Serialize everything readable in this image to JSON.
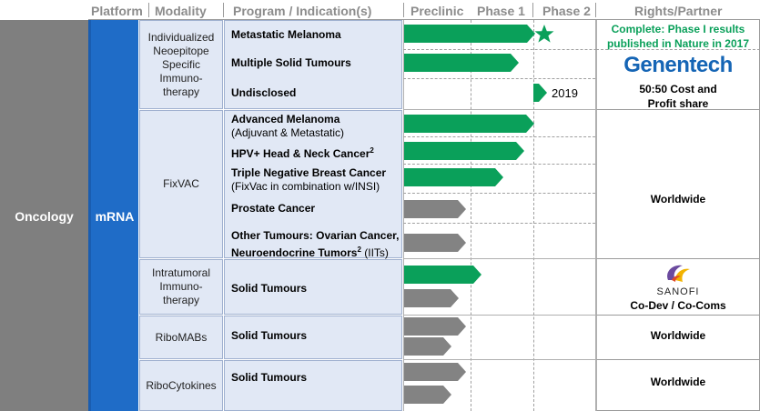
{
  "header": {
    "platform": "Platform",
    "modality": "Modality",
    "program": "Program / Indication(s)",
    "preclinic": "Preclinic",
    "phase1": "Phase 1",
    "phase2": "Phase 2",
    "rights": "Rights/Partner"
  },
  "therapeutic_area": "Oncology",
  "platform_label": "mRNA",
  "modalities": {
    "inest": "Individualized Neoepitope Specific Immuno-therapy",
    "fixvac": "FixVAC",
    "intratumoral": "Intratumoral Immuno-therapy",
    "ribomabs": "RiboMABs",
    "ribocytokines": "RiboCytokines"
  },
  "programs": {
    "metastatic_melanoma": "Metastatic Melanoma",
    "multiple_solid": "Multiple Solid Tumours",
    "undisclosed": "Undisclosed",
    "advanced_melanoma": "Advanced Melanoma",
    "advanced_melanoma_sub": "(Adjuvant & Metastatic)",
    "hpv_head_neck": "HPV+ Head & Neck Cancer",
    "hpv_sup": "2",
    "tnbc": "Triple Negative Breast Cancer",
    "tnbc_sub": "(FixVac in combination w/INSI)",
    "prostate": "Prostate Cancer",
    "other_tumours_1": "Other Tumours: Ovarian Cancer,",
    "other_tumours_2": "Neuroendocrine Tumors",
    "other_sup": "2",
    "other_iits": " (IITs)",
    "solid_intratumoral": "Solid Tumours",
    "solid_ribomabs": "Solid Tumours",
    "solid_ribocytokines": "Solid Tumours"
  },
  "chart_annotations": {
    "undisclosed_year": "2019",
    "star_icon": "star-icon"
  },
  "rights": {
    "inest_complete_1": "Complete: Phase I results",
    "inest_complete_2": "published in Nature in 2017",
    "genentech_logo": "Genentech",
    "inest_share_1": "50:50 Cost and",
    "inest_share_2": "Profit share",
    "fixvac": "Worldwide",
    "sanofi_logo": "SANOFI",
    "intratumoral": "Co-Dev / Co-Coms",
    "ribomabs": "Worldwide",
    "ribocytokines": "Worldwide"
  },
  "colors": {
    "green": "#0aa05a",
    "gray": "#838383",
    "mrna_blue": "#1f6cc7",
    "oncology_gray": "#7f7f7f",
    "panel_blue": "#e1e8f5",
    "genentech_blue": "#1565b5",
    "sanofi_purple": "#6b4a9e"
  }
}
